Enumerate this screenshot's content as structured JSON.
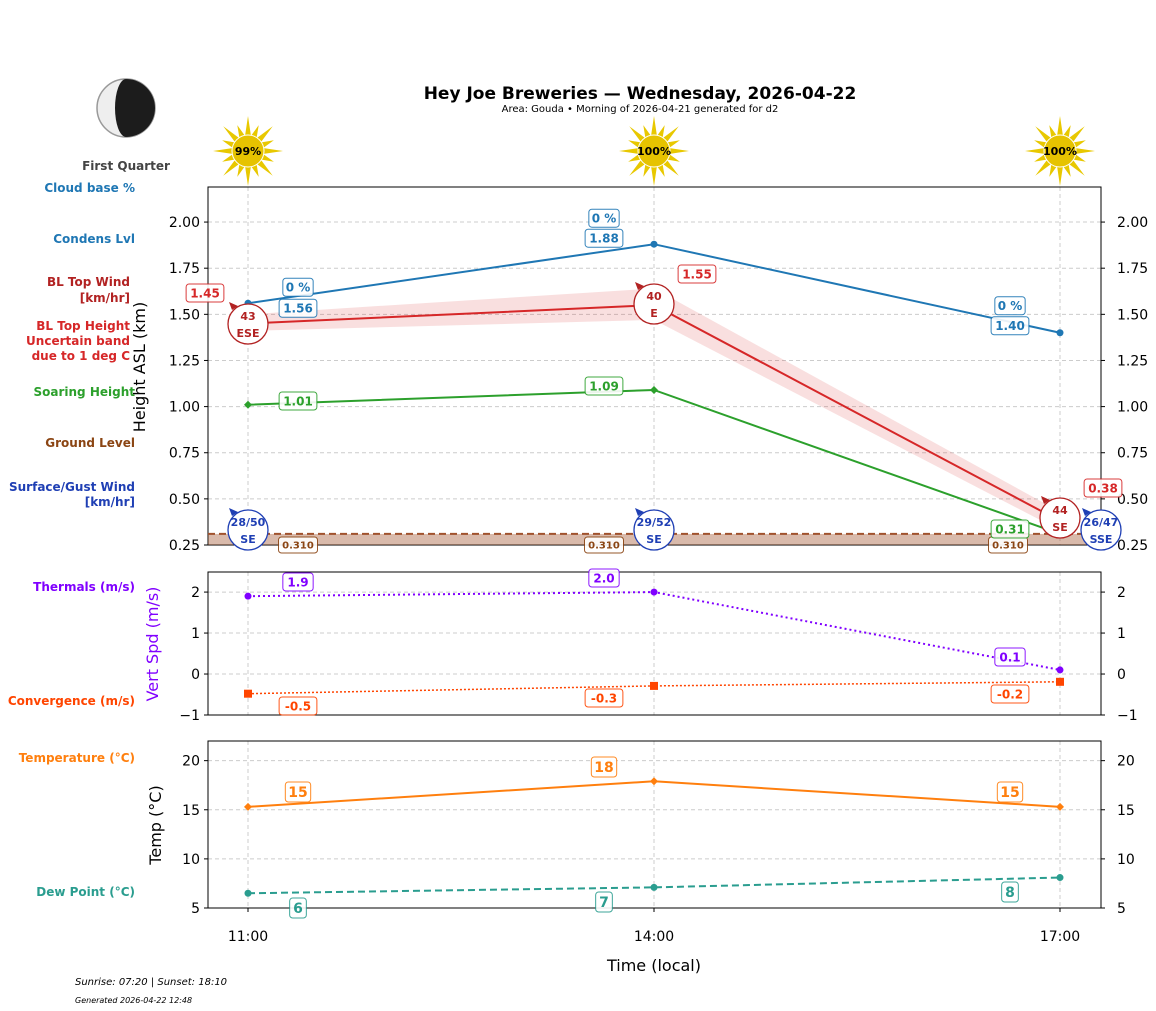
{
  "title": "Hey Joe Breweries — Wednesday, 2026-04-22",
  "subtitle": "Area: Gouda • Morning of 2026-04-21 generated for d2",
  "moon": {
    "phase": "First Quarter",
    "icon": "moon-first-quarter-icon"
  },
  "sun_icon": "sun-icon",
  "footer": {
    "sun": "Sunrise: 07:20 | Sunset: 18:10",
    "generated": "Generated 2026-04-22 12:48"
  },
  "side_labels": {
    "cloud_base": "Cloud base %",
    "condens": "Condens Lvl",
    "bl_wind_1": "BL Top Wind",
    "bl_wind_2": "[km/hr]",
    "bl_height_1": "BL Top Height",
    "bl_height_2": "Uncertain band",
    "bl_height_3": "due to 1 deg C",
    "soaring": "Soaring Height",
    "ground": "Ground Level",
    "surface_1": "Surface/Gust Wind",
    "surface_2": "[km/hr]",
    "thermals": "Thermals (m/s)",
    "convergence": "Convergence (m/s)",
    "temperature": "Temperature (°C)",
    "dew": "Dew Point (°C)"
  },
  "colors": {
    "condens": "#1f77b4",
    "bl": "#d62728",
    "soaring": "#2ca02c",
    "ground": "#a0522d",
    "surface": "#1f3fb4",
    "thermal": "#8000ff",
    "conv": "#ff4500",
    "temp": "#ff7f0e",
    "dew": "#2a9d8f"
  },
  "chart_data": [
    {
      "type": "line",
      "panel": "height",
      "xlabel": "",
      "ylabel": "Height ASL (km)",
      "ylim": [
        0.25,
        2.19
      ],
      "x": [
        "11:00",
        "14:00",
        "17:00"
      ],
      "yticks": [
        "0.25",
        "0.50",
        "0.75",
        "1.00",
        "1.25",
        "1.50",
        "1.75",
        "2.00"
      ],
      "sun_percent": [
        "99%",
        "100%",
        "100%"
      ],
      "series": [
        {
          "name": "Condens Lvl",
          "values": [
            1.56,
            1.88,
            1.4
          ],
          "labels": [
            "1.56",
            "1.88",
            "1.40"
          ],
          "cloud_base": [
            "0 %",
            "0 %",
            "0 %"
          ]
        },
        {
          "name": "BL Top Height",
          "values": [
            1.45,
            1.55,
            0.38
          ],
          "labels": [
            "1.45",
            "1.55",
            "0.38"
          ],
          "band_low": [
            1.41,
            1.47,
            0.33
          ],
          "band_high": [
            1.5,
            1.64,
            0.43
          ],
          "wind": [
            {
              "speed": "43",
              "dir": "ESE"
            },
            {
              "speed": "40",
              "dir": "E"
            },
            {
              "speed": "44",
              "dir": "SE"
            }
          ]
        },
        {
          "name": "Soaring Height",
          "values": [
            1.01,
            1.09,
            0.31
          ],
          "labels": [
            "1.01",
            "1.09",
            "0.31"
          ]
        },
        {
          "name": "Ground Level",
          "values": [
            0.31,
            0.31,
            0.31
          ],
          "labels": [
            "0.310",
            "0.310",
            "0.310"
          ]
        },
        {
          "name": "Surface/Gust Wind",
          "wind": [
            {
              "speed": "28/50",
              "dir": "SE"
            },
            {
              "speed": "29/52",
              "dir": "SE"
            },
            {
              "speed": "26/47",
              "dir": "SSE"
            }
          ]
        }
      ],
      "grid": true
    },
    {
      "type": "line",
      "panel": "vert",
      "ylabel": "Vert Spd (m/s)",
      "ylim": [
        -1,
        2.49
      ],
      "yticks": [
        "−1",
        "0",
        "1",
        "2"
      ],
      "series": [
        {
          "name": "Thermals (m/s)",
          "values": [
            1.9,
            2.0,
            0.1
          ],
          "labels": [
            "1.9",
            "2.0",
            "0.1"
          ]
        },
        {
          "name": "Convergence (m/s)",
          "values": [
            -0.48,
            -0.29,
            -0.19
          ],
          "labels": [
            "-0.5",
            "-0.3",
            "-0.2"
          ]
        }
      ],
      "grid": true
    },
    {
      "type": "line",
      "panel": "temp",
      "xlabel": "Time (local)",
      "ylabel": "Temp (°C)",
      "ylim": [
        5,
        22
      ],
      "yticks": [
        "5",
        "10",
        "15",
        "20"
      ],
      "x": [
        "11:00",
        "14:00",
        "17:00"
      ],
      "series": [
        {
          "name": "Temperature (°C)",
          "values": [
            15.3,
            17.9,
            15.3
          ],
          "labels": [
            "15",
            "18",
            "15"
          ]
        },
        {
          "name": "Dew Point (°C)",
          "values": [
            6.5,
            7.1,
            8.1
          ],
          "labels": [
            "6",
            "7",
            "8"
          ]
        }
      ],
      "grid": true
    }
  ]
}
